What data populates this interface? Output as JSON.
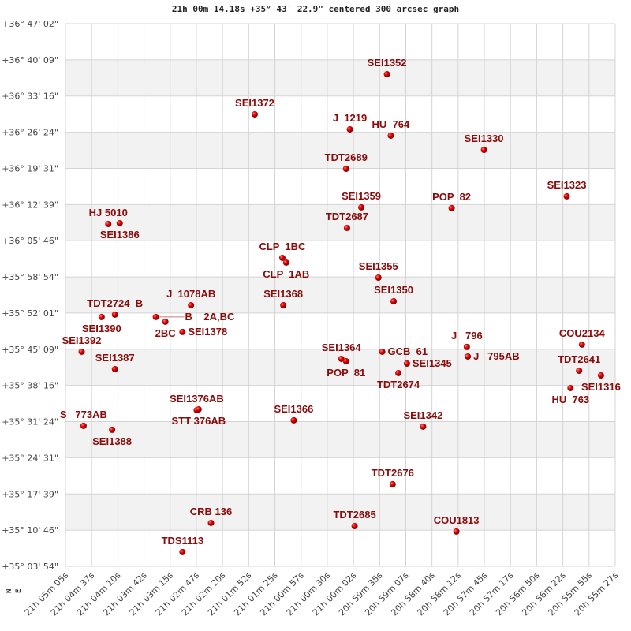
{
  "chart_data": {
    "type": "scatter",
    "title": "21h 00m 14.18s +35° 43′ 22.9\" centered 300 arcsec graph",
    "xlim": [
      "21:05:05",
      "20:55:27"
    ],
    "ylim": [
      "+35:03:54",
      "+36:47:02"
    ],
    "grid": true,
    "x_tick_labels": [
      "21h 05m 05s",
      "21h 04m 37s",
      "21h 04m 10s",
      "21h 03m 42s",
      "21h 03m 15s",
      "21h 02m 47s",
      "21h 02m 20s",
      "21h 01m 52s",
      "21h 01m 25s",
      "21h 00m 57s",
      "21h 00m 30s",
      "21h 00m 02s",
      "20h 59m 35s",
      "20h 59m 07s",
      "20h 58m 40s",
      "20h 58m 12s",
      "20h 57m 45s",
      "20h 57m 17s",
      "20h 56m 50s",
      "20h 56m 22s",
      "20h 55m 55s",
      "20h 55m 27s"
    ],
    "y_tick_labels": [
      "+36° 47' 02\"",
      "+36° 40' 09\"",
      "+36° 33' 16\"",
      "+36° 26' 24\"",
      "+36° 19' 31\"",
      "+36° 12' 39\"",
      "+36° 05' 46\"",
      "+35° 58' 54\"",
      "+35° 52' 01\"",
      "+35° 45' 09\"",
      "+35° 38' 16\"",
      "+35° 31' 24\"",
      "+35° 24' 31\"",
      "+35° 17' 39\"",
      "+35° 10' 46\"",
      "+35° 03' 54\""
    ],
    "compass": {
      "north": "N",
      "east": "E"
    },
    "point_color": "#cc0000",
    "label_color": "#8b0a0a",
    "points": [
      {
        "label": "SEI1352",
        "ra": "20:59:27",
        "dec": "+36:37:26"
      },
      {
        "label": "SEI1372",
        "ra": "21:01:46",
        "dec": "+36:29:48"
      },
      {
        "label": "J  1219",
        "ra": "21:00:06",
        "dec": "+36:26:57"
      },
      {
        "label": "HU  764",
        "ra": "20:59:23",
        "dec": "+36:25:45"
      },
      {
        "label": "SEI1330",
        "ra": "20:57:45",
        "dec": "+36:23:03"
      },
      {
        "label": "TDT2689",
        "ra": "21:00:10",
        "dec": "+36:19:27"
      },
      {
        "label": "SEI1359",
        "ra": "20:59:54",
        "dec": "+36:12:07"
      },
      {
        "label": "POP  82",
        "ra": "20:58:19",
        "dec": "+36:11:58"
      },
      {
        "label": "SEI1323",
        "ra": "20:56:18",
        "dec": "+36:14:13"
      },
      {
        "label": "TDT2687",
        "ra": "21:00:09",
        "dec": "+36:08:13"
      },
      {
        "label": "HJ 5010",
        "ra": "21:04:20",
        "dec": "+36:08:58"
      },
      {
        "label": "SEI1386",
        "ra": "21:04:08",
        "dec": "+36:09:07"
      },
      {
        "label": "CLP  1BC",
        "ra": "21:01:17",
        "dec": "+36:02:31"
      },
      {
        "label": "CLP  1AB",
        "ra": "21:01:13",
        "dec": "+36:01:37"
      },
      {
        "label": "SEI1355",
        "ra": "20:59:36",
        "dec": "+35:58:46"
      },
      {
        "label": "SEI1368",
        "ra": "21:01:16",
        "dec": "+35:53:31"
      },
      {
        "label": "SEI1350",
        "ra": "20:59:20",
        "dec": "+35:54:16"
      },
      {
        "label": "J  1078AB",
        "ra": "21:02:53",
        "dec": "+35:53:31"
      },
      {
        "label": "TDT2724  B",
        "ra": "21:04:13",
        "dec": "+35:51:44"
      },
      {
        "label": "SEI1390",
        "ra": "21:04:27",
        "dec": "+35:51:17"
      },
      {
        "label": "B    2A,BC",
        "ra": "21:03:30",
        "dec": "+35:51:17"
      },
      {
        "label": "2BC",
        "ra": "21:03:20",
        "dec": "+35:50:23"
      },
      {
        "label": "SEI1378",
        "ra": "21:03:02",
        "dec": "+35:48:26"
      },
      {
        "label": "SEI1392",
        "ra": "21:04:48",
        "dec": "+35:44:41"
      },
      {
        "label": "SEI1387",
        "ra": "21:04:13",
        "dec": "+35:41:23"
      },
      {
        "label": "SEI1364",
        "ra": "21:00:15",
        "dec": "+35:43:20"
      },
      {
        "label": "POP  81",
        "ra": "21:00:10",
        "dec": "+35:42:53"
      },
      {
        "label": "GCB  61",
        "ra": "20:59:32",
        "dec": "+35:44:41"
      },
      {
        "label": "SEI1345",
        "ra": "20:59:06",
        "dec": "+35:42:26"
      },
      {
        "label": "TDT2674",
        "ra": "20:59:15",
        "dec": "+35:40:38"
      },
      {
        "label": "J   796",
        "ra": "20:58:03",
        "dec": "+35:45:35"
      },
      {
        "label": "J   795AB",
        "ra": "20:58:02",
        "dec": "+35:43:47"
      },
      {
        "label": "COU2134",
        "ra": "20:56:02",
        "dec": "+35:46:02"
      },
      {
        "label": "TDT2641",
        "ra": "20:56:05",
        "dec": "+35:41:05"
      },
      {
        "label": "SEI1316",
        "ra": "20:55:42",
        "dec": "+35:40:11"
      },
      {
        "label": "HU  763",
        "ra": "20:56:14",
        "dec": "+35:37:47"
      },
      {
        "label": "SEI1376AB",
        "ra": "21:02:47",
        "dec": "+35:33:35"
      },
      {
        "label": "STT 376AB",
        "ra": "21:02:45",
        "dec": "+35:33:44"
      },
      {
        "label": "S   773AB",
        "ra": "21:04:46",
        "dec": "+35:30:36"
      },
      {
        "label": "SEI1388",
        "ra": "21:04:16",
        "dec": "+35:29:51"
      },
      {
        "label": "SEI1366",
        "ra": "21:01:05",
        "dec": "+35:31:39"
      },
      {
        "label": "SEI1342",
        "ra": "20:58:49",
        "dec": "+35:30:27"
      },
      {
        "label": "TDT2676",
        "ra": "20:59:21",
        "dec": "+35:19:30"
      },
      {
        "label": "CRB 136",
        "ra": "21:02:32",
        "dec": "+35:12:09"
      },
      {
        "label": "TDT2685",
        "ra": "21:00:01",
        "dec": "+35:11:33"
      },
      {
        "label": "COU1813",
        "ra": "20:58:14",
        "dec": "+35:10:31"
      },
      {
        "label": "TDS1113",
        "ra": "21:03:02",
        "dec": "+35:06:37"
      }
    ]
  }
}
